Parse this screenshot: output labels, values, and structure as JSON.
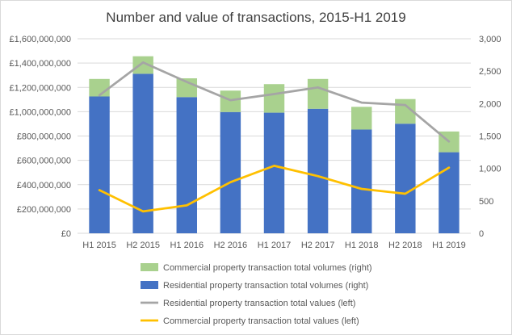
{
  "chart_data": {
    "type": "bar",
    "title": "Number and value of transactions, 2015-H1 2019",
    "categories": [
      "H1 2015",
      "H2 2015",
      "H1 2016",
      "H2 2016",
      "H1 2017",
      "H2 2017",
      "H1 2018",
      "H2 2018",
      "H1 2019"
    ],
    "stacked_bars": {
      "axis": "right",
      "series": [
        {
          "name": "Residential property transaction total volumes (right)",
          "color": "#4472C4",
          "values": [
            2110,
            2460,
            2100,
            1870,
            1860,
            1920,
            1600,
            1690,
            1250
          ]
        },
        {
          "name": "Commercial property transaction total volumes (right)",
          "color": "#A9D18E",
          "values": [
            270,
            270,
            290,
            330,
            440,
            460,
            350,
            380,
            320
          ]
        }
      ]
    },
    "lines": {
      "axis": "left",
      "series": [
        {
          "name": "Residential property transaction total values (left)",
          "color": "#A5A5A5",
          "values": [
            1135000000,
            1405000000,
            1245000000,
            1095000000,
            1145000000,
            1200000000,
            1075000000,
            1055000000,
            755000000
          ]
        },
        {
          "name": "Commercial property transaction total values (left)",
          "color": "#FFC000",
          "values": [
            355000000,
            180000000,
            230000000,
            420000000,
            555000000,
            470000000,
            365000000,
            325000000,
            540000000
          ]
        }
      ]
    },
    "left_axis": {
      "ylim": [
        0,
        1600000000
      ],
      "ticks": [
        "£0",
        "£200,000,000",
        "£400,000,000",
        "£600,000,000",
        "£800,000,000",
        "£1,000,000,000",
        "£1,200,000,000",
        "£1,400,000,000",
        "£1,600,000,000"
      ]
    },
    "right_axis": {
      "ylim": [
        0,
        3000
      ],
      "ticks": [
        "0",
        "500",
        "1,000",
        "1,500",
        "2,000",
        "2,500",
        "3,000"
      ]
    },
    "legend_order": [
      "Commercial property transaction total volumes (right)",
      "Residential property transaction total volumes (right)",
      "Residential property transaction total values (left)",
      "Commercial property transaction total values (left)"
    ],
    "legend_position": "bottom",
    "gridlines": true
  }
}
